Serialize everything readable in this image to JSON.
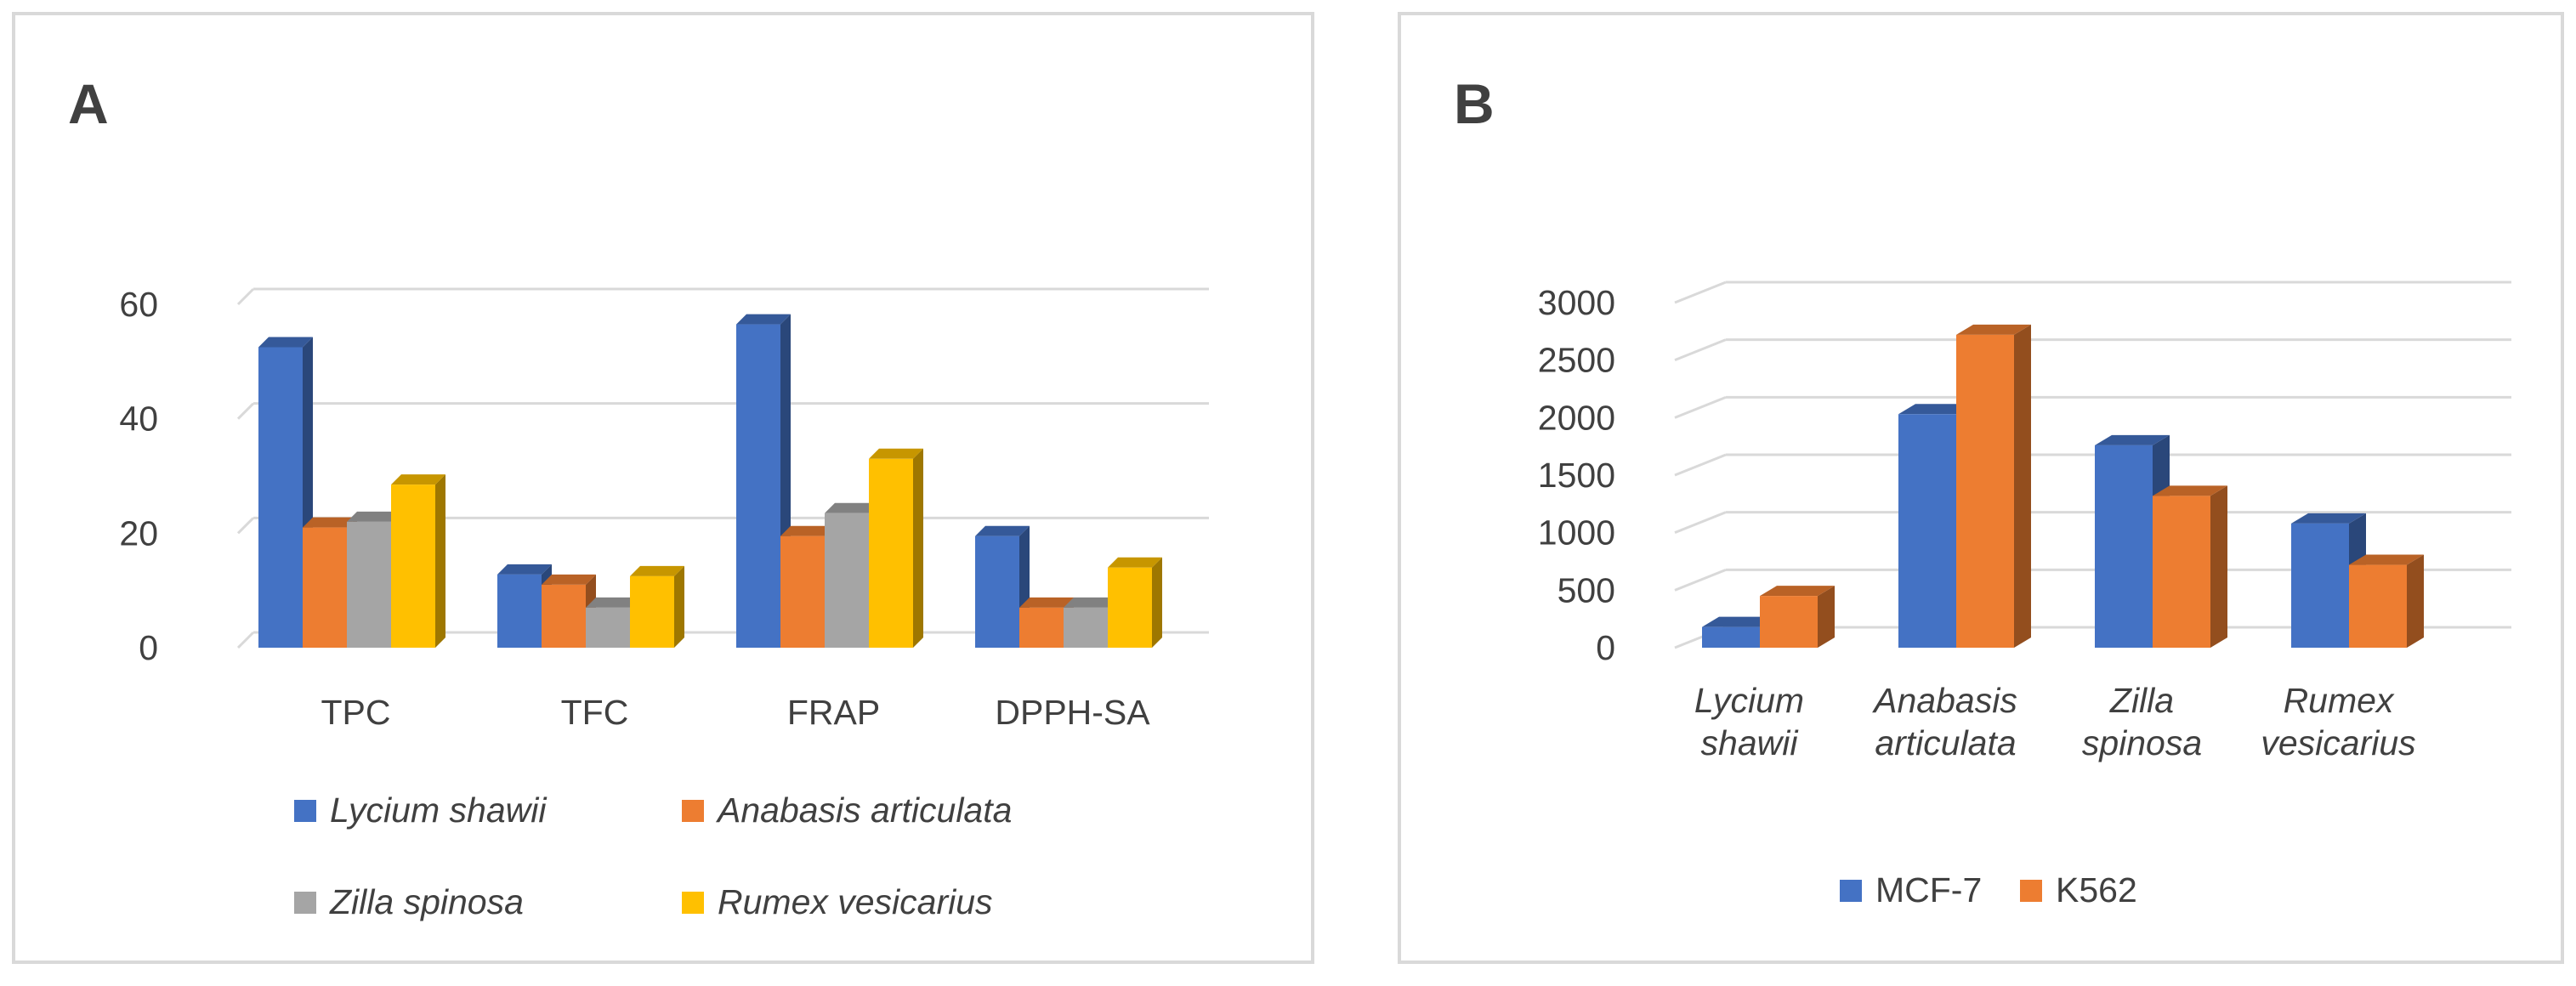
{
  "chart_data": [
    {
      "panel_label": "A",
      "type": "bar",
      "style": "3d-clustered-column",
      "categories": [
        "TPC",
        "TFC",
        "FRAP",
        "DPPH-SA"
      ],
      "series": [
        {
          "name": "Lycium shawii",
          "color": "#4472c4",
          "values": [
            52.5,
            12.8,
            56.5,
            19.5
          ]
        },
        {
          "name": "Anabasis articulata",
          "color": "#ed7d31",
          "values": [
            21.0,
            11.0,
            19.5,
            7.0
          ]
        },
        {
          "name": "Zilla spinosa",
          "color": "#a5a5a5",
          "values": [
            22.0,
            7.0,
            23.5,
            7.0
          ]
        },
        {
          "name": "Rumex vesicarius",
          "color": "#ffc000",
          "values": [
            28.5,
            12.5,
            33.0,
            14.0
          ]
        }
      ],
      "y_ticks": [
        "0",
        "20",
        "40",
        "60"
      ],
      "ylim": [
        0,
        60
      ],
      "grid": true,
      "legend_position": "bottom"
    },
    {
      "panel_label": "B",
      "type": "bar",
      "style": "3d-clustered-column",
      "categories": [
        [
          "Lycium",
          "shawii"
        ],
        [
          "Anabasis",
          "articulata"
        ],
        [
          "Zilla",
          "spinosa"
        ],
        [
          "Rumex",
          "vesicarius"
        ]
      ],
      "series": [
        {
          "name": "MCF-7",
          "color": "#4472c4",
          "values": [
            180,
            2030,
            1760,
            1080
          ]
        },
        {
          "name": "K562",
          "color": "#ed7d31",
          "values": [
            450,
            2720,
            1320,
            720
          ]
        }
      ],
      "y_ticks": [
        "0",
        "500",
        "1000",
        "1500",
        "2000",
        "2500",
        "3000"
      ],
      "ylim": [
        0,
        3000
      ],
      "grid": true,
      "legend_position": "bottom"
    }
  ]
}
